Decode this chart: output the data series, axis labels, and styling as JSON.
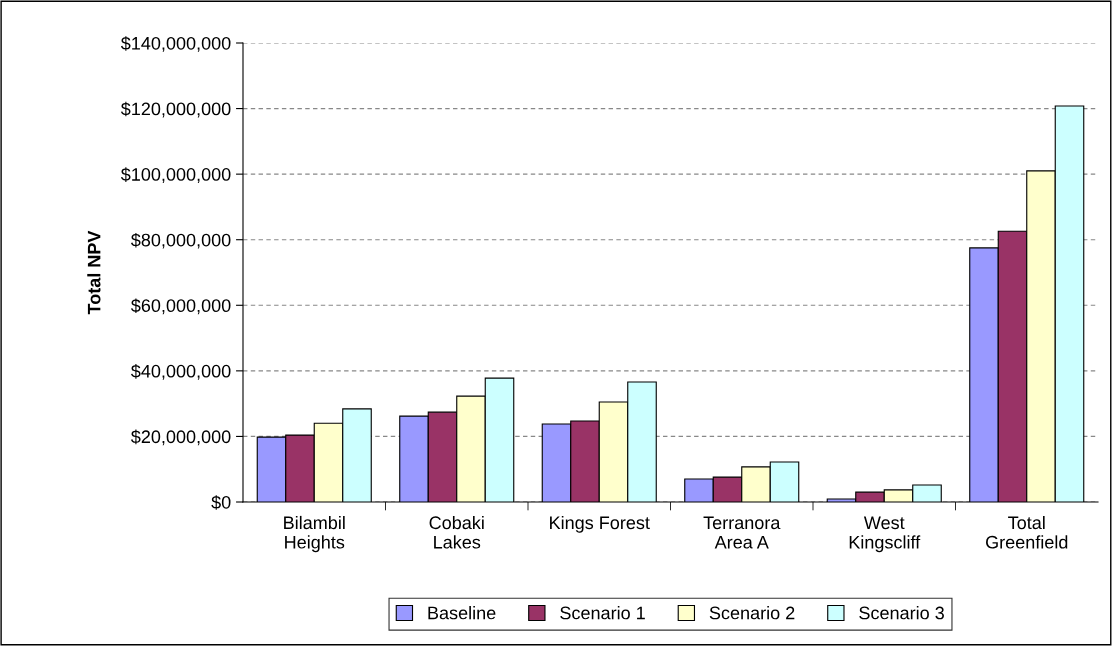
{
  "chart_data": {
    "type": "bar",
    "ylabel": "Total NPV",
    "categories": [
      "Bilambil\nHeights",
      "Cobaki\nLakes",
      "Kings Forest",
      "Terranora\nArea A",
      "West\nKingscliff",
      "Total\nGreenfield"
    ],
    "series": [
      {
        "name": "Baseline",
        "color": "#9999ff",
        "values": [
          19800000,
          26200000,
          23800000,
          7000000,
          900000,
          77500000
        ]
      },
      {
        "name": "Scenario 1",
        "color": "#993366",
        "values": [
          20400000,
          27400000,
          24700000,
          7600000,
          3000000,
          82600000
        ]
      },
      {
        "name": "Scenario 2",
        "color": "#ffffcc",
        "values": [
          24000000,
          32300000,
          30500000,
          10700000,
          3700000,
          101000000
        ]
      },
      {
        "name": "Scenario 3",
        "color": "#ccffff",
        "values": [
          28400000,
          37800000,
          36600000,
          12200000,
          5200000,
          120800000
        ]
      }
    ],
    "ylim": [
      0,
      140000000
    ],
    "yticks": [
      {
        "value": 0,
        "label": "$0"
      },
      {
        "value": 20000000,
        "label": "$20,000,000"
      },
      {
        "value": 40000000,
        "label": "$40,000,000"
      },
      {
        "value": 60000000,
        "label": "$60,000,000"
      },
      {
        "value": 80000000,
        "label": "$80,000,000"
      },
      {
        "value": 100000000,
        "label": "$100,000,000"
      },
      {
        "value": 120000000,
        "label": "$120,000,000"
      },
      {
        "value": 140000000,
        "label": "$140,000,000"
      }
    ],
    "grid": "y",
    "legend": "bottom"
  }
}
